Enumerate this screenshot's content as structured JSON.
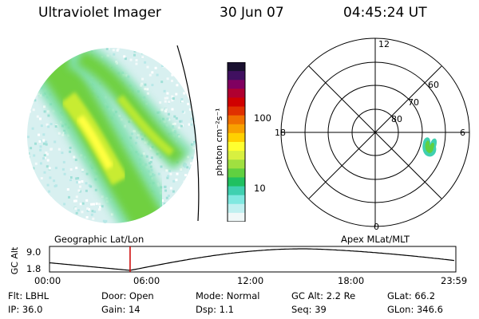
{
  "header": {
    "title": "Ultraviolet Imager",
    "date": "30 Jun 07",
    "time": "04:45:24 UT"
  },
  "colorbar": {
    "label": "photon cm⁻²s⁻¹",
    "ticks": [
      "100",
      "10"
    ],
    "colors": [
      "#1a1030",
      "#401060",
      "#800060",
      "#b00030",
      "#d00000",
      "#e03000",
      "#f07000",
      "#f8a000",
      "#ffd000",
      "#ffff30",
      "#d8f040",
      "#a0e040",
      "#60d040",
      "#20c060",
      "#40d0b0",
      "#80e8e0",
      "#c0f0f0",
      "#f0f8f8"
    ]
  },
  "polar": {
    "hour_labels": {
      "top": "12",
      "left": "18",
      "right": "6",
      "bottom": "0"
    },
    "lat_labels": [
      "60",
      "70",
      "80"
    ]
  },
  "altitude_plot": {
    "left_label": "Geographic Lat/Lon",
    "right_label": "Apex MLat/MLT",
    "ylabel": "GC Alt",
    "ytick_top": "9.0",
    "ytick_bottom": "1.8",
    "xticks": [
      "00:00",
      "06:00",
      "12:00",
      "18:00",
      "23:59"
    ],
    "current_time_hours": 4.76,
    "marker_color": "#cc0000"
  },
  "info": {
    "row1": {
      "flt": "Flt: LBHL",
      "door": "Door: Open",
      "mode": "Mode: Normal",
      "gcalt": "GC Alt: 2.2 Re",
      "glat": "GLat:  66.2"
    },
    "row2": {
      "ip": "IP: 36.0",
      "gain": "Gain: 14",
      "dsp": "Dsp:     1.1",
      "seq": "Seq: 39",
      "glon": "GLon: 346.6"
    }
  }
}
